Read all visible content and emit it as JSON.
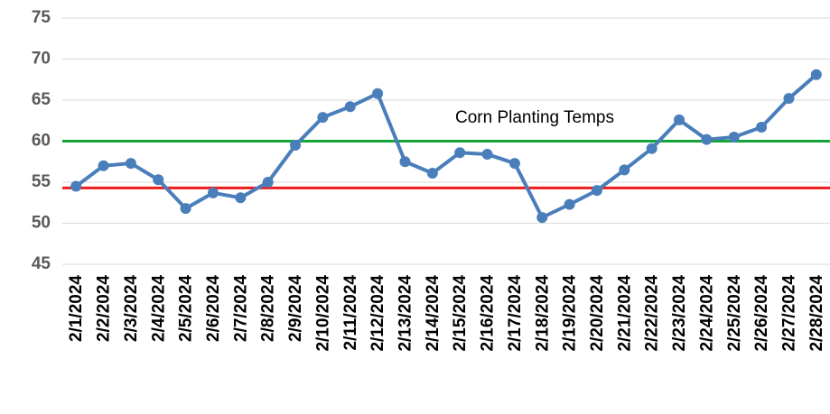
{
  "chart_data": {
    "type": "line",
    "categories": [
      "2/1/2024",
      "2/2/2024",
      "2/3/2024",
      "2/4/2024",
      "2/5/2024",
      "2/6/2024",
      "2/7/2024",
      "2/8/2024",
      "2/9/2024",
      "2/10/2024",
      "2/11/2024",
      "2/12/2024",
      "2/13/2024",
      "2/14/2024",
      "2/15/2024",
      "2/16/2024",
      "2/17/2024",
      "2/18/2024",
      "2/19/2024",
      "2/20/2024",
      "2/21/2024",
      "2/22/2024",
      "2/23/2024",
      "2/24/2024",
      "2/25/2024",
      "2/26/2024",
      "2/27/2024",
      "2/28/2024"
    ],
    "values": [
      54.5,
      57.0,
      57.3,
      55.3,
      51.8,
      53.7,
      53.1,
      55.0,
      59.5,
      62.9,
      64.2,
      65.8,
      57.5,
      56.1,
      58.6,
      58.4,
      57.3,
      50.7,
      52.3,
      54.0,
      56.5,
      59.1,
      62.6,
      60.2,
      60.5,
      61.7,
      65.2,
      68.1
    ],
    "color": "#4a7ebb",
    "ylim": [
      45,
      75
    ],
    "yticks": [
      45,
      50,
      55,
      60,
      65,
      70,
      75
    ],
    "grid": true,
    "reference_lines": [
      {
        "value": 60,
        "color": "#13a538"
      },
      {
        "value": 54.3,
        "color": "#ee1c1c"
      }
    ],
    "annotation": "Corn Planting Temps"
  }
}
